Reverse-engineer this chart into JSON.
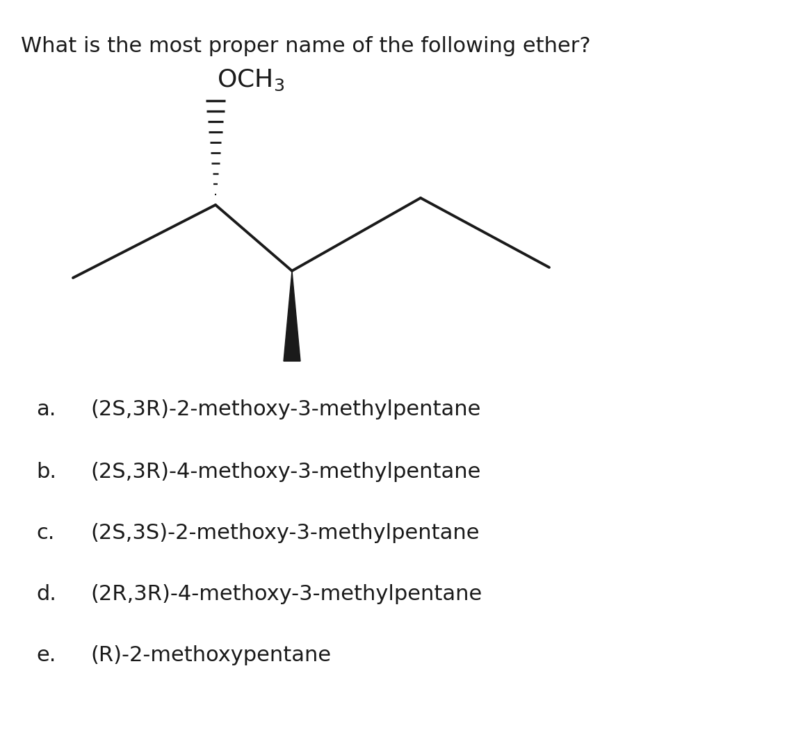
{
  "title": "What is the most proper name of the following ether?",
  "title_fontsize": 22,
  "title_color": "#1a1a1a",
  "background_color": "#ffffff",
  "options_display": [
    {
      "letter": "a.",
      "text": "(2S,3R)-2-methoxy-3-methylpentane"
    },
    {
      "letter": "b.",
      "text": "(2S,3R)-4-methoxy-3-methylpentane"
    },
    {
      "letter": "c.",
      "text": "(2S,3S)-2-methoxy-3-methylpentane"
    },
    {
      "letter": "d.",
      "text": "(2R,3R)-4-methoxy-3-methylpentane"
    },
    {
      "letter": "e.",
      "text": "(R)-2-methoxypentane"
    }
  ],
  "option_fontsize": 22,
  "line_color": "#1a1a1a",
  "line_width": 2.8
}
